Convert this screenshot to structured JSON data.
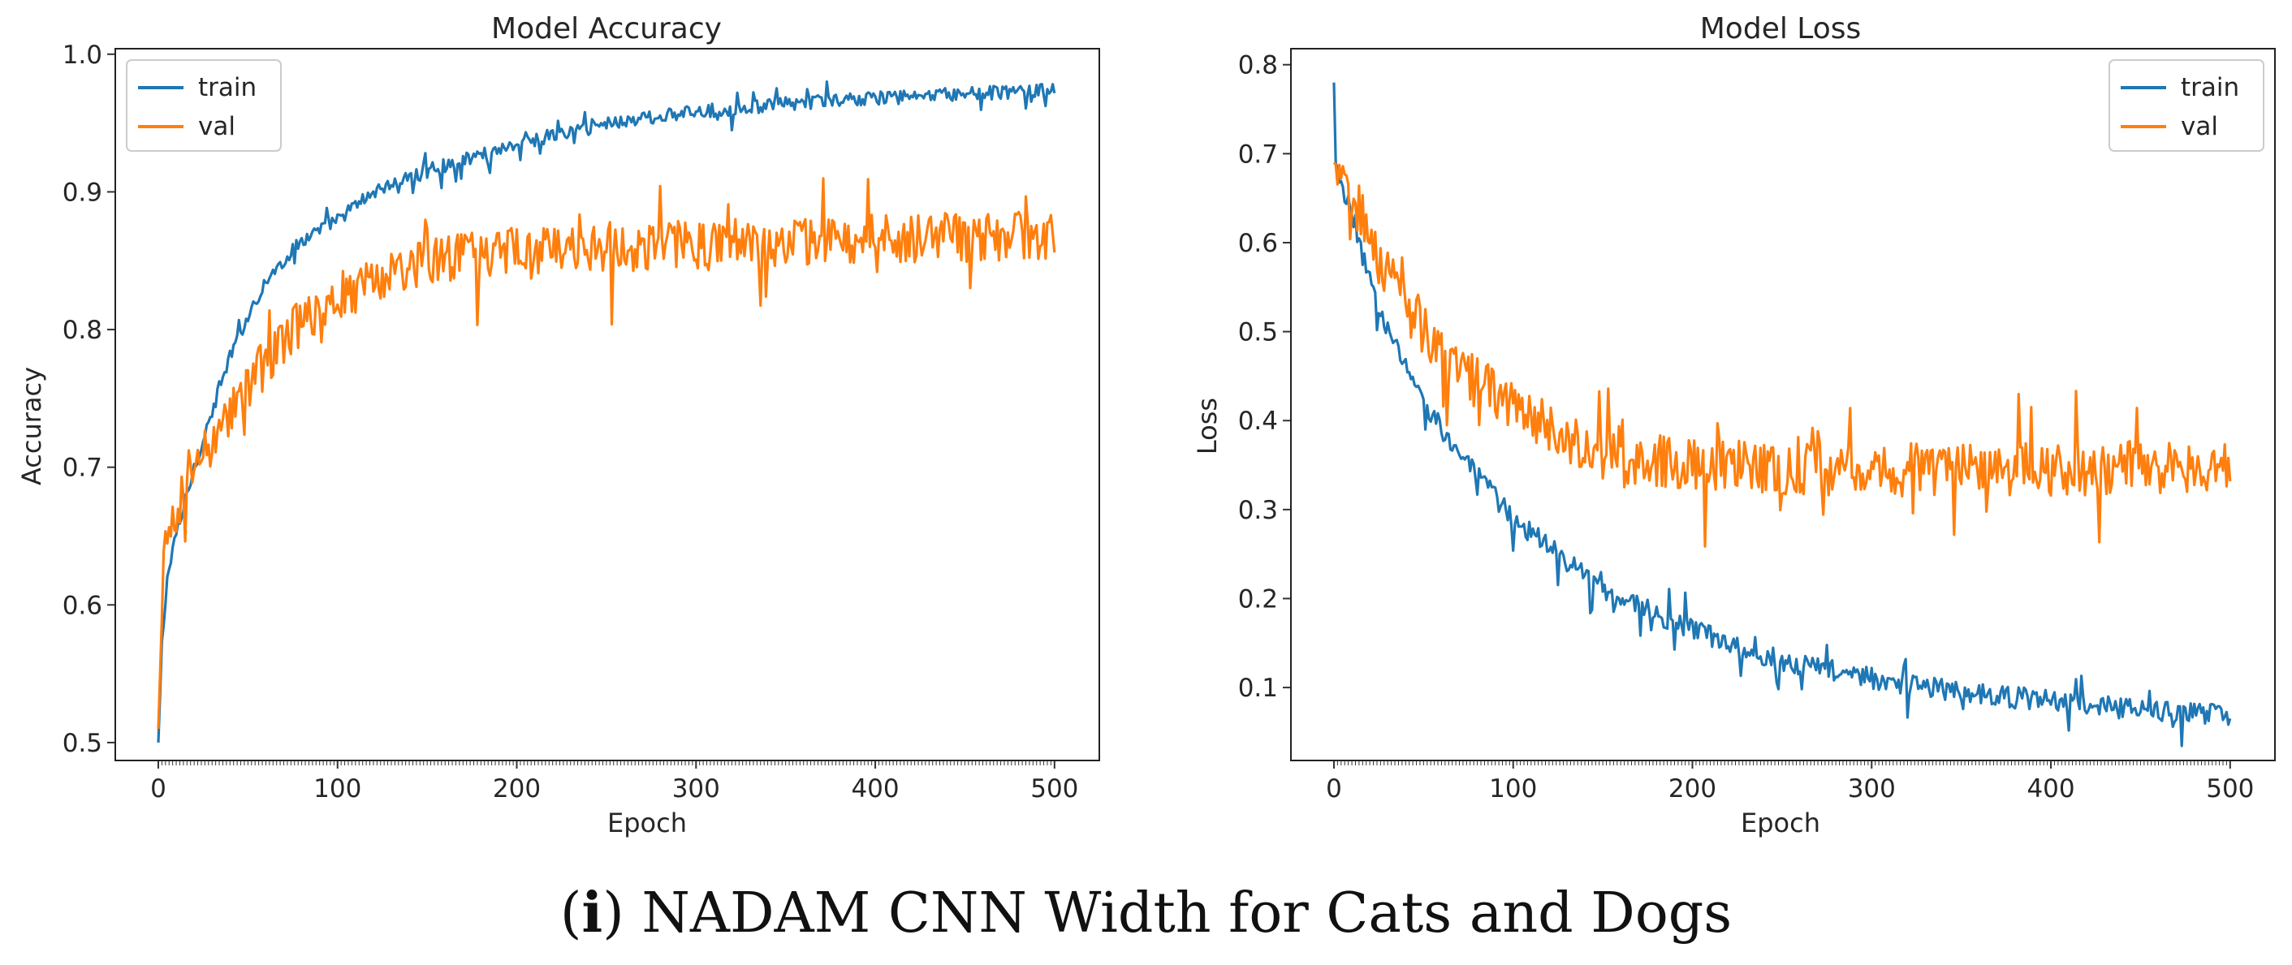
{
  "caption": {
    "prefix": "(",
    "letter": "i",
    "suffix": ")",
    "text": "NADAM CNN Width for Cats and Dogs"
  },
  "colors": {
    "train": "#1f77b4",
    "val": "#ff7f0e"
  },
  "chart_data": [
    {
      "type": "line",
      "title": "Model Accuracy",
      "xlabel": "Epoch",
      "ylabel": "Accuracy",
      "xlim": [
        -24,
        525
      ],
      "ylim": [
        0.487,
        1.004
      ],
      "xticks": [
        0,
        100,
        200,
        300,
        400,
        500
      ],
      "yticks": [
        0.5,
        0.6,
        0.7,
        0.8,
        0.9,
        1.0
      ],
      "ytick_labels": [
        "0.5",
        "0.6",
        "0.7",
        "0.8",
        "0.9",
        "1.0"
      ],
      "legend": "top-left",
      "series": [
        {
          "name": "train",
          "epochs": 500,
          "keypoints": [
            [
              0,
              0.5
            ],
            [
              2,
              0.57
            ],
            [
              5,
              0.62
            ],
            [
              10,
              0.65
            ],
            [
              20,
              0.7
            ],
            [
              30,
              0.74
            ],
            [
              40,
              0.78
            ],
            [
              50,
              0.81
            ],
            [
              60,
              0.835
            ],
            [
              80,
              0.865
            ],
            [
              100,
              0.88
            ],
            [
              120,
              0.9
            ],
            [
              150,
              0.915
            ],
            [
              200,
              0.935
            ],
            [
              250,
              0.95
            ],
            [
              300,
              0.958
            ],
            [
              350,
              0.964
            ],
            [
              400,
              0.968
            ],
            [
              450,
              0.971
            ],
            [
              500,
              0.974
            ]
          ],
          "noise": 0.005
        },
        {
          "name": "val",
          "epochs": 500,
          "keypoints": [
            [
              0,
              0.51
            ],
            [
              3,
              0.63
            ],
            [
              10,
              0.67
            ],
            [
              20,
              0.7
            ],
            [
              30,
              0.72
            ],
            [
              50,
              0.76
            ],
            [
              75,
              0.8
            ],
            [
              100,
              0.825
            ],
            [
              150,
              0.85
            ],
            [
              200,
              0.858
            ],
            [
              300,
              0.862
            ],
            [
              400,
              0.866
            ],
            [
              500,
              0.868
            ]
          ],
          "noise": 0.018
        }
      ]
    },
    {
      "type": "line",
      "title": "Model Loss",
      "xlabel": "Epoch",
      "ylabel": "Loss",
      "xlim": [
        -24,
        525
      ],
      "ylim": [
        0.018,
        0.818
      ],
      "xticks": [
        0,
        100,
        200,
        300,
        400,
        500
      ],
      "yticks": [
        0.1,
        0.2,
        0.3,
        0.4,
        0.5,
        0.6,
        0.7,
        0.8
      ],
      "ytick_labels": [
        "0.1",
        "0.2",
        "0.3",
        "0.4",
        "0.5",
        "0.6",
        "0.7",
        "0.8"
      ],
      "legend": "top-right",
      "series": [
        {
          "name": "train",
          "epochs": 500,
          "keypoints": [
            [
              0,
              0.78
            ],
            [
              1,
              0.69
            ],
            [
              5,
              0.66
            ],
            [
              10,
              0.62
            ],
            [
              20,
              0.56
            ],
            [
              30,
              0.5
            ],
            [
              40,
              0.46
            ],
            [
              50,
              0.42
            ],
            [
              75,
              0.35
            ],
            [
              100,
              0.29
            ],
            [
              125,
              0.25
            ],
            [
              150,
              0.21
            ],
            [
              200,
              0.165
            ],
            [
              250,
              0.13
            ],
            [
              300,
              0.11
            ],
            [
              350,
              0.095
            ],
            [
              400,
              0.085
            ],
            [
              450,
              0.075
            ],
            [
              500,
              0.07
            ]
          ],
          "noise": 0.012
        },
        {
          "name": "val",
          "epochs": 500,
          "keypoints": [
            [
              0,
              0.69
            ],
            [
              5,
              0.68
            ],
            [
              10,
              0.66
            ],
            [
              20,
              0.6
            ],
            [
              30,
              0.56
            ],
            [
              40,
              0.53
            ],
            [
              60,
              0.48
            ],
            [
              80,
              0.44
            ],
            [
              100,
              0.42
            ],
            [
              130,
              0.38
            ],
            [
              150,
              0.36
            ],
            [
              200,
              0.35
            ],
            [
              300,
              0.345
            ],
            [
              400,
              0.345
            ],
            [
              500,
              0.35
            ]
          ],
          "noise": 0.03
        }
      ]
    }
  ]
}
